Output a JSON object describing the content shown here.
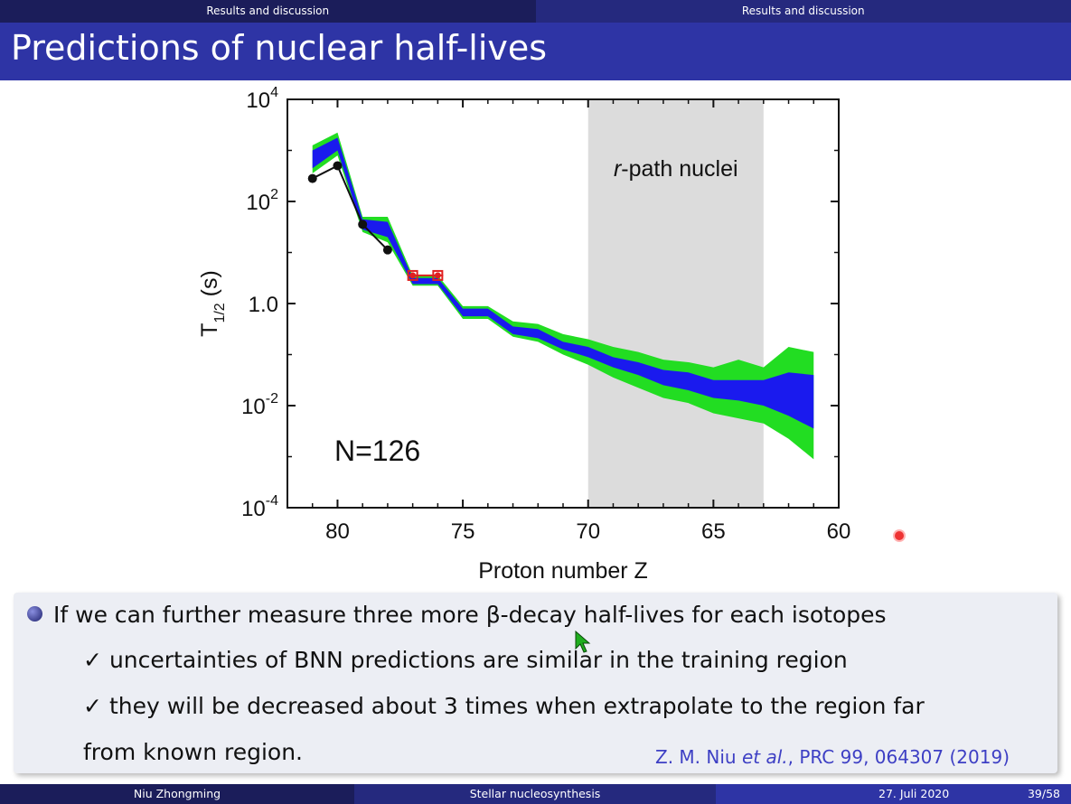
{
  "header": {
    "section_left": "Results and discussion",
    "section_right": "Results and discussion",
    "slide_title": "Predictions of nuclear half-lives"
  },
  "chart_data": {
    "type": "area",
    "xlabel": "Proton number Z",
    "ylabel_main": "T",
    "ylabel_sub": "1/2",
    "ylabel_unit": "(s)",
    "yscale": "log",
    "x_ticks": [
      80,
      75,
      70,
      65,
      60
    ],
    "x_reversed": true,
    "xlim": [
      82,
      60
    ],
    "ylim_log10": [
      -4,
      4
    ],
    "y_ticks": [
      {
        "base": "10",
        "exp": "4",
        "log": 4
      },
      {
        "base": "10",
        "exp": "2",
        "log": 2
      },
      {
        "base": "10",
        "exp": "0",
        "log": 0,
        "label": "1.0"
      },
      {
        "base": "10",
        "exp": "-2",
        "log": -2
      },
      {
        "base": "10",
        "exp": "-4",
        "log": -4
      }
    ],
    "region": {
      "label_italic": "r",
      "label_rest": "-path nuclei",
      "x_from": 70,
      "x_to": 63,
      "color": "#dcdcdc"
    },
    "annotation": "N=126",
    "series": [
      {
        "color": "#22dd22",
        "x": [
          81,
          80,
          79,
          78,
          77,
          76,
          75,
          74,
          73,
          72,
          71,
          70,
          69,
          68,
          67,
          66,
          65,
          64,
          63,
          62,
          61
        ],
        "upper": [
          3.1,
          3.35,
          1.7,
          1.7,
          0.55,
          0.55,
          -0.05,
          -0.05,
          -0.35,
          -0.4,
          -0.6,
          -0.7,
          -0.85,
          -0.95,
          -1.1,
          -1.15,
          -1.25,
          -1.1,
          -1.25,
          -0.85,
          -0.95
        ],
        "lower": [
          2.55,
          2.9,
          1.4,
          1.2,
          0.35,
          0.35,
          -0.3,
          -0.3,
          -0.65,
          -0.75,
          -1.0,
          -1.2,
          -1.45,
          -1.65,
          -1.85,
          -1.95,
          -2.15,
          -2.25,
          -2.35,
          -2.65,
          -3.05
        ]
      },
      {
        "color": "#1a1aee",
        "x": [
          81,
          80,
          79,
          78,
          77,
          76,
          75,
          74,
          73,
          72,
          71,
          70,
          69,
          68,
          67,
          66,
          65,
          64,
          63,
          62,
          61
        ],
        "upper": [
          3.0,
          3.25,
          1.65,
          1.6,
          0.5,
          0.5,
          -0.1,
          -0.1,
          -0.45,
          -0.5,
          -0.75,
          -0.85,
          -1.05,
          -1.15,
          -1.3,
          -1.35,
          -1.5,
          -1.5,
          -1.5,
          -1.35,
          -1.4
        ],
        "lower": [
          2.65,
          3.0,
          1.45,
          1.3,
          0.38,
          0.38,
          -0.25,
          -0.25,
          -0.6,
          -0.68,
          -0.9,
          -1.05,
          -1.25,
          -1.4,
          -1.6,
          -1.7,
          -1.85,
          -1.9,
          -2.0,
          -2.2,
          -2.45
        ]
      }
    ],
    "experimental": {
      "x": [
        81,
        80,
        79,
        78
      ],
      "y": [
        2.45,
        2.7,
        1.55,
        1.05
      ],
      "color": "#111111"
    },
    "new_points": {
      "x": [
        77,
        76
      ],
      "y": [
        0.55,
        0.55
      ],
      "color": "#e02020"
    }
  },
  "bullets": {
    "main": "If we can further measure three more β-decay half-lives for each isotopes",
    "check_symbol": "✓",
    "sub1": "uncertainties of BNN predictions are similar in the training region",
    "sub2": "they will be decreased about 3 times when extrapolate to the region far",
    "sub2_cont": "from known region.",
    "citation_authors": "Z. M. Niu ",
    "citation_etal": "et al.",
    "citation_ref": ", PRC 99, 064307 (2019)"
  },
  "footer": {
    "author": "Niu Zhongming",
    "talk_title": "Stellar nucleosynthesis",
    "date": "27. Juli 2020",
    "page": "39/58"
  }
}
